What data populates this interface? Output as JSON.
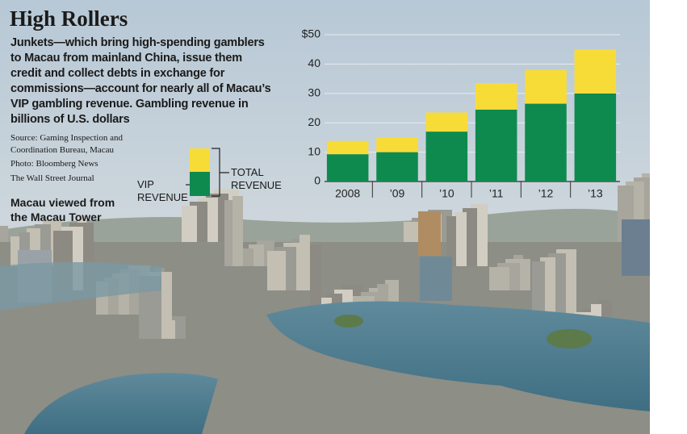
{
  "chart_data": {
    "type": "stacked_bar",
    "title": "High Rollers",
    "description": [
      "Junkets—which bring high-spending gamblers",
      "to Macau from mainland China, issue them",
      "credit and collect debts in exchange for",
      "commissions—account for nearly all of Macau’s",
      "VIP gambling revenue. Gambling revenue in",
      "billions of U.S. dollars"
    ],
    "source": [
      "Source: Gaming Inspection and",
      "Coordination Bureau, Macau"
    ],
    "photo_credit": "Photo: Bloomberg News",
    "publisher": "The Wall Street Journal",
    "caption": [
      "Macau viewed from",
      "the Macau Tower"
    ],
    "categories": [
      "2008",
      "’09",
      "’10",
      "’11",
      "’12",
      "’13"
    ],
    "series": [
      {
        "name": "VIP REVENUE",
        "color": "#0e8a4e",
        "values": [
          9.3,
          10,
          17,
          24.5,
          26.5,
          30
        ]
      },
      {
        "color": "#f7dc38",
        "values": [
          4.5,
          5,
          6.5,
          9,
          11.5,
          15
        ]
      }
    ],
    "legend_total": "TOTAL REVENUE",
    "ylim": [
      0,
      50
    ],
    "yticks": [
      0,
      10,
      20,
      30,
      40,
      {
        "value": 50,
        "label": "$50"
      }
    ],
    "grid": true
  }
}
